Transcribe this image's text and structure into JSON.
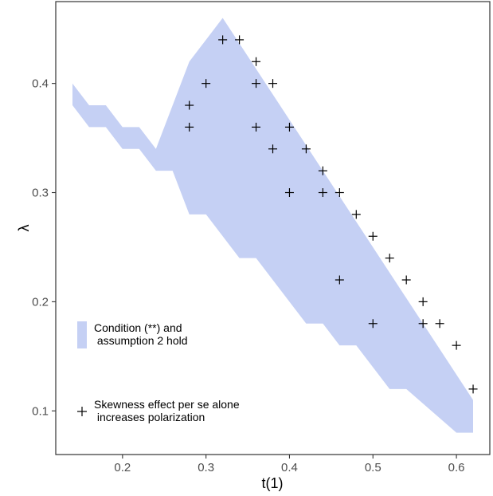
{
  "chart_data": {
    "type": "area+scatter",
    "xlabel": "t(1)",
    "ylabel": "λ",
    "xlim": [
      0.12,
      0.64
    ],
    "ylim": [
      0.06,
      0.475
    ],
    "x_ticks": [
      {
        "value": 0.2,
        "label": "0.2"
      },
      {
        "value": 0.3,
        "label": "0.3"
      },
      {
        "value": 0.4,
        "label": "0.4"
      },
      {
        "value": 0.5,
        "label": "0.5"
      },
      {
        "value": 0.6,
        "label": "0.6"
      }
    ],
    "y_ticks": [
      {
        "value": 0.1,
        "label": "0.1"
      },
      {
        "value": 0.2,
        "label": "0.2"
      },
      {
        "value": 0.3,
        "label": "0.3"
      },
      {
        "value": 0.4,
        "label": "0.4"
      }
    ],
    "grid": false,
    "legend_position": "bottom-left inside",
    "region": {
      "name": "Condition (**) and\n assumption 2 hold",
      "color": "#c5d0f4",
      "upper": [
        [
          0.14,
          0.4
        ],
        [
          0.16,
          0.38
        ],
        [
          0.18,
          0.38
        ],
        [
          0.2,
          0.36
        ],
        [
          0.22,
          0.36
        ],
        [
          0.24,
          0.34
        ],
        [
          0.28,
          0.42
        ],
        [
          0.32,
          0.46
        ],
        [
          0.62,
          0.11
        ]
      ],
      "lower": [
        [
          0.62,
          0.08
        ],
        [
          0.6,
          0.08
        ],
        [
          0.54,
          0.12
        ],
        [
          0.52,
          0.12
        ],
        [
          0.48,
          0.16
        ],
        [
          0.46,
          0.16
        ],
        [
          0.44,
          0.18
        ],
        [
          0.42,
          0.18
        ],
        [
          0.36,
          0.24
        ],
        [
          0.34,
          0.24
        ],
        [
          0.3,
          0.28
        ],
        [
          0.28,
          0.28
        ],
        [
          0.26,
          0.32
        ],
        [
          0.24,
          0.32
        ],
        [
          0.22,
          0.34
        ],
        [
          0.2,
          0.34
        ],
        [
          0.18,
          0.36
        ],
        [
          0.16,
          0.36
        ],
        [
          0.14,
          0.38
        ]
      ]
    },
    "points": {
      "name": "Skewness effect per se alone\n increases polarization",
      "marker": "+",
      "color": "#000000",
      "values": [
        [
          0.32,
          0.44
        ],
        [
          0.34,
          0.44
        ],
        [
          0.36,
          0.42
        ],
        [
          0.3,
          0.4
        ],
        [
          0.36,
          0.4
        ],
        [
          0.38,
          0.4
        ],
        [
          0.28,
          0.38
        ],
        [
          0.28,
          0.36
        ],
        [
          0.36,
          0.36
        ],
        [
          0.4,
          0.36
        ],
        [
          0.38,
          0.34
        ],
        [
          0.42,
          0.34
        ],
        [
          0.44,
          0.32
        ],
        [
          0.4,
          0.3
        ],
        [
          0.44,
          0.3
        ],
        [
          0.46,
          0.3
        ],
        [
          0.48,
          0.28
        ],
        [
          0.5,
          0.26
        ],
        [
          0.52,
          0.24
        ],
        [
          0.46,
          0.22
        ],
        [
          0.54,
          0.22
        ],
        [
          0.56,
          0.2
        ],
        [
          0.5,
          0.18
        ],
        [
          0.56,
          0.18
        ],
        [
          0.58,
          0.18
        ],
        [
          0.6,
          0.16
        ],
        [
          0.62,
          0.12
        ]
      ]
    }
  }
}
